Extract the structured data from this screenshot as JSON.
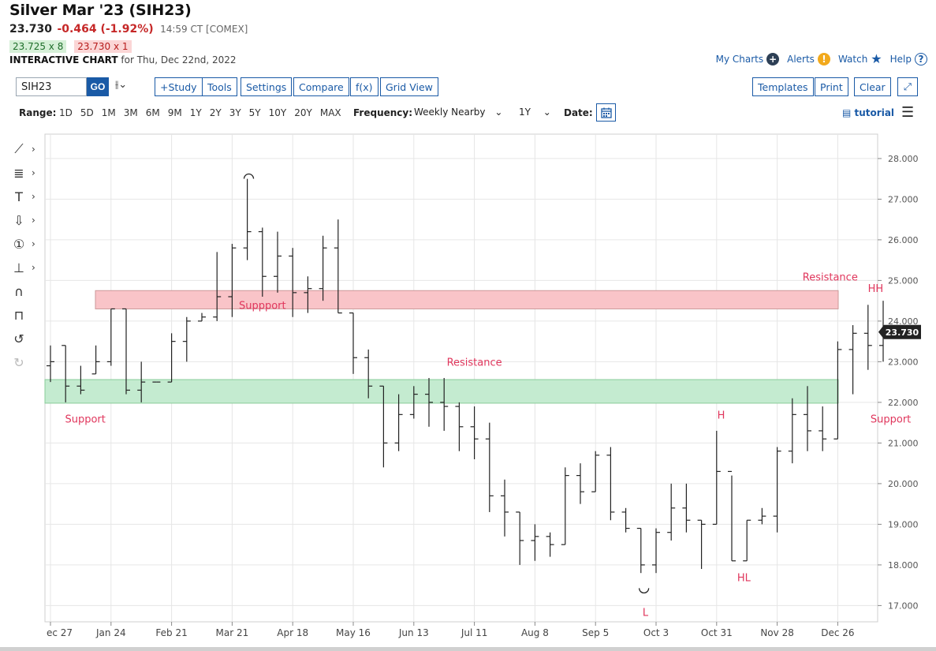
{
  "header": {
    "title": "Silver Mar '23 (SIH23)",
    "last": "23.730",
    "change": "-0.464 (-1.92%)",
    "time": "14:59 CT [COMEX]",
    "bid": "23.725 x 8",
    "ask": "23.730 x 1",
    "interactive_label": "INTERACTIVE CHART",
    "interactive_date": "for Thu, Dec 22nd, 2022"
  },
  "top_links": {
    "my_charts": "My Charts",
    "alerts": "Alerts",
    "watch": "Watch",
    "help": "Help"
  },
  "toolbar": {
    "symbol": "SIH23",
    "go": "GO",
    "bartype": "⫲⌄",
    "study": "+Study",
    "tools": "Tools",
    "settings": "Settings",
    "compare": "Compare",
    "fx": "f(x)",
    "grid_view": "Grid View",
    "templates": "Templates",
    "print": "Print",
    "clear": "Clear",
    "expand": "⤢"
  },
  "rangebar": {
    "range_label": "Range:",
    "ranges": [
      "1D",
      "5D",
      "1M",
      "3M",
      "6M",
      "9M",
      "1Y",
      "2Y",
      "3Y",
      "5Y",
      "10Y",
      "20Y",
      "MAX"
    ],
    "frequency_label": "Frequency:",
    "frequency": "Weekly Nearby",
    "period": "1Y",
    "date_label": "Date:",
    "tutorial": "tutorial"
  },
  "sidebar_tools": [
    {
      "name": "line-tool",
      "glyph": "⟋"
    },
    {
      "name": "fib-tool",
      "glyph": "≣"
    },
    {
      "name": "text-tool",
      "glyph": "T"
    },
    {
      "name": "arrow-tool",
      "glyph": "⇩"
    },
    {
      "name": "number-tool",
      "glyph": "①"
    },
    {
      "name": "measure-tool",
      "glyph": "⊥"
    },
    {
      "name": "magnet-tool",
      "glyph": "∩"
    },
    {
      "name": "lock-tool",
      "glyph": "⊓"
    },
    {
      "name": "undo-tool",
      "glyph": "↺"
    },
    {
      "name": "redo-tool",
      "glyph": "↻"
    }
  ],
  "colors": {
    "resistance_zone": "#f9c4c8",
    "support_zone": "#c4ebd0",
    "annotation": "#e0365c",
    "bar": "#222222",
    "grid": "#e6e6e6",
    "link": "#1a5aa6"
  },
  "chart_data": {
    "type": "ohlc",
    "frequency": "weekly",
    "ylim": [
      16.6,
      28.6
    ],
    "y_ticks": [
      "17.000",
      "18.000",
      "19.000",
      "20.000",
      "21.000",
      "22.000",
      "23.000",
      "24.000",
      "25.000",
      "26.000",
      "27.000",
      "28.000"
    ],
    "x_ticks": [
      "ec 27",
      "Jan 24",
      "Feb 21",
      "Mar 21",
      "Apr 18",
      "May 16",
      "Jun 13",
      "Jul 11",
      "Aug 8",
      "Sep 5",
      "Oct 3",
      "Oct 31",
      "Nov 28",
      "Dec 26"
    ],
    "last_price_label": "23.730",
    "bars": [
      {
        "o": 22.9,
        "h": 23.4,
        "l": 22.5,
        "c": 23.0
      },
      {
        "o": 23.4,
        "h": 23.4,
        "l": 22.0,
        "c": 22.4
      },
      {
        "o": 22.4,
        "h": 22.9,
        "l": 22.2,
        "c": 22.3
      },
      {
        "o": 22.7,
        "h": 23.4,
        "l": 22.7,
        "c": 23.0
      },
      {
        "o": 23.0,
        "h": 24.3,
        "l": 22.9,
        "c": 24.3
      },
      {
        "o": 24.3,
        "h": 24.3,
        "l": 22.2,
        "c": 22.3
      },
      {
        "o": 22.3,
        "h": 23.0,
        "l": 22.0,
        "c": 22.5
      },
      {
        "o": 22.5,
        "h": 22.5,
        "l": 22.5,
        "c": 22.5
      },
      {
        "o": 22.5,
        "h": 23.7,
        "l": 22.5,
        "c": 23.5
      },
      {
        "o": 23.5,
        "h": 24.1,
        "l": 23.0,
        "c": 24.0
      },
      {
        "o": 24.0,
        "h": 24.2,
        "l": 24.0,
        "c": 24.1
      },
      {
        "o": 24.1,
        "h": 25.7,
        "l": 24.0,
        "c": 24.6
      },
      {
        "o": 24.6,
        "h": 25.9,
        "l": 24.1,
        "c": 25.8
      },
      {
        "o": 25.8,
        "h": 27.5,
        "l": 25.5,
        "c": 26.2
      },
      {
        "o": 26.2,
        "h": 26.3,
        "l": 24.6,
        "c": 25.1
      },
      {
        "o": 25.1,
        "h": 26.2,
        "l": 24.7,
        "c": 25.6
      },
      {
        "o": 25.6,
        "h": 25.8,
        "l": 24.1,
        "c": 24.7
      },
      {
        "o": 24.7,
        "h": 25.1,
        "l": 24.2,
        "c": 24.8
      },
      {
        "o": 24.8,
        "h": 26.1,
        "l": 24.5,
        "c": 25.8
      },
      {
        "o": 25.8,
        "h": 26.5,
        "l": 24.2,
        "c": 24.2
      },
      {
        "o": 24.2,
        "h": 24.2,
        "l": 22.7,
        "c": 23.1
      },
      {
        "o": 23.1,
        "h": 23.3,
        "l": 22.1,
        "c": 22.4
      },
      {
        "o": 22.4,
        "h": 22.4,
        "l": 20.4,
        "c": 21.0
      },
      {
        "o": 21.0,
        "h": 22.2,
        "l": 20.8,
        "c": 21.7
      },
      {
        "o": 21.7,
        "h": 22.4,
        "l": 21.6,
        "c": 22.2
      },
      {
        "o": 22.2,
        "h": 22.6,
        "l": 21.4,
        "c": 22.0
      },
      {
        "o": 22.0,
        "h": 22.6,
        "l": 21.3,
        "c": 21.9
      },
      {
        "o": 21.9,
        "h": 22.0,
        "l": 20.8,
        "c": 21.4
      },
      {
        "o": 21.4,
        "h": 21.9,
        "l": 20.6,
        "c": 21.1
      },
      {
        "o": 21.1,
        "h": 21.5,
        "l": 19.3,
        "c": 19.7
      },
      {
        "o": 19.7,
        "h": 20.1,
        "l": 18.7,
        "c": 19.3
      },
      {
        "o": 19.3,
        "h": 19.3,
        "l": 18.0,
        "c": 18.6
      },
      {
        "o": 18.6,
        "h": 19.0,
        "l": 18.1,
        "c": 18.7
      },
      {
        "o": 18.7,
        "h": 18.8,
        "l": 18.2,
        "c": 18.5
      },
      {
        "o": 18.5,
        "h": 20.4,
        "l": 18.5,
        "c": 20.2
      },
      {
        "o": 20.2,
        "h": 20.5,
        "l": 19.5,
        "c": 19.8
      },
      {
        "o": 19.8,
        "h": 20.8,
        "l": 19.8,
        "c": 20.7
      },
      {
        "o": 20.7,
        "h": 20.9,
        "l": 19.1,
        "c": 19.3
      },
      {
        "o": 19.3,
        "h": 19.4,
        "l": 18.8,
        "c": 18.9
      },
      {
        "o": 18.9,
        "h": 18.9,
        "l": 17.8,
        "c": 18.0
      },
      {
        "o": 18.0,
        "h": 18.9,
        "l": 17.8,
        "c": 18.8
      },
      {
        "o": 18.8,
        "h": 20.0,
        "l": 18.6,
        "c": 19.4
      },
      {
        "o": 19.4,
        "h": 20.0,
        "l": 18.8,
        "c": 19.1
      },
      {
        "o": 19.1,
        "h": 19.1,
        "l": 17.9,
        "c": 19.0
      },
      {
        "o": 19.0,
        "h": 21.3,
        "l": 19.0,
        "c": 20.3
      },
      {
        "o": 20.3,
        "h": 20.2,
        "l": 18.1,
        "c": 18.1
      },
      {
        "o": 18.1,
        "h": 19.1,
        "l": 18.1,
        "c": 19.1
      },
      {
        "o": 19.1,
        "h": 19.4,
        "l": 19.0,
        "c": 19.2
      },
      {
        "o": 19.2,
        "h": 20.9,
        "l": 18.8,
        "c": 20.8
      },
      {
        "o": 20.8,
        "h": 22.1,
        "l": 20.5,
        "c": 21.7
      },
      {
        "o": 21.7,
        "h": 22.4,
        "l": 20.8,
        "c": 21.3
      },
      {
        "o": 21.3,
        "h": 21.9,
        "l": 20.8,
        "c": 21.1
      },
      {
        "o": 21.1,
        "h": 23.5,
        "l": 21.1,
        "c": 23.3
      },
      {
        "o": 23.3,
        "h": 23.9,
        "l": 22.2,
        "c": 23.7
      },
      {
        "o": 23.7,
        "h": 24.4,
        "l": 22.8,
        "c": 23.4
      },
      {
        "o": 23.4,
        "h": 24.5,
        "l": 23.0,
        "c": 23.73
      }
    ],
    "zones": [
      {
        "name": "resistance-zone",
        "low": 24.3,
        "high": 24.75
      },
      {
        "name": "support-zone",
        "low": 21.98,
        "high": 22.56
      }
    ],
    "annotations": [
      {
        "text": "Suppport",
        "x": 14,
        "y": 24.3,
        "anchor": "middle"
      },
      {
        "text": "Support",
        "x": 2.3,
        "y": 21.5,
        "anchor": "middle"
      },
      {
        "text": "Resistance",
        "x": 28,
        "y": 22.9,
        "anchor": "middle"
      },
      {
        "text": "Resistance",
        "x": 51.5,
        "y": 25.0,
        "anchor": "middle"
      },
      {
        "text": "HH",
        "x": 54.5,
        "y": 24.72,
        "anchor": "middle"
      },
      {
        "text": "Support",
        "x": 55.5,
        "y": 21.5,
        "anchor": "middle"
      },
      {
        "text": "H",
        "x": 44.3,
        "y": 21.6,
        "anchor": "middle"
      },
      {
        "text": "HL",
        "x": 45.8,
        "y": 17.6,
        "anchor": "middle"
      },
      {
        "text": "L",
        "x": 39.3,
        "y": 16.75,
        "anchor": "middle"
      }
    ],
    "swing_marks": [
      {
        "type": "top",
        "x": 13.1,
        "y": 27.58
      },
      {
        "type": "bottom",
        "x": 39.2,
        "y": 17.35
      }
    ]
  }
}
